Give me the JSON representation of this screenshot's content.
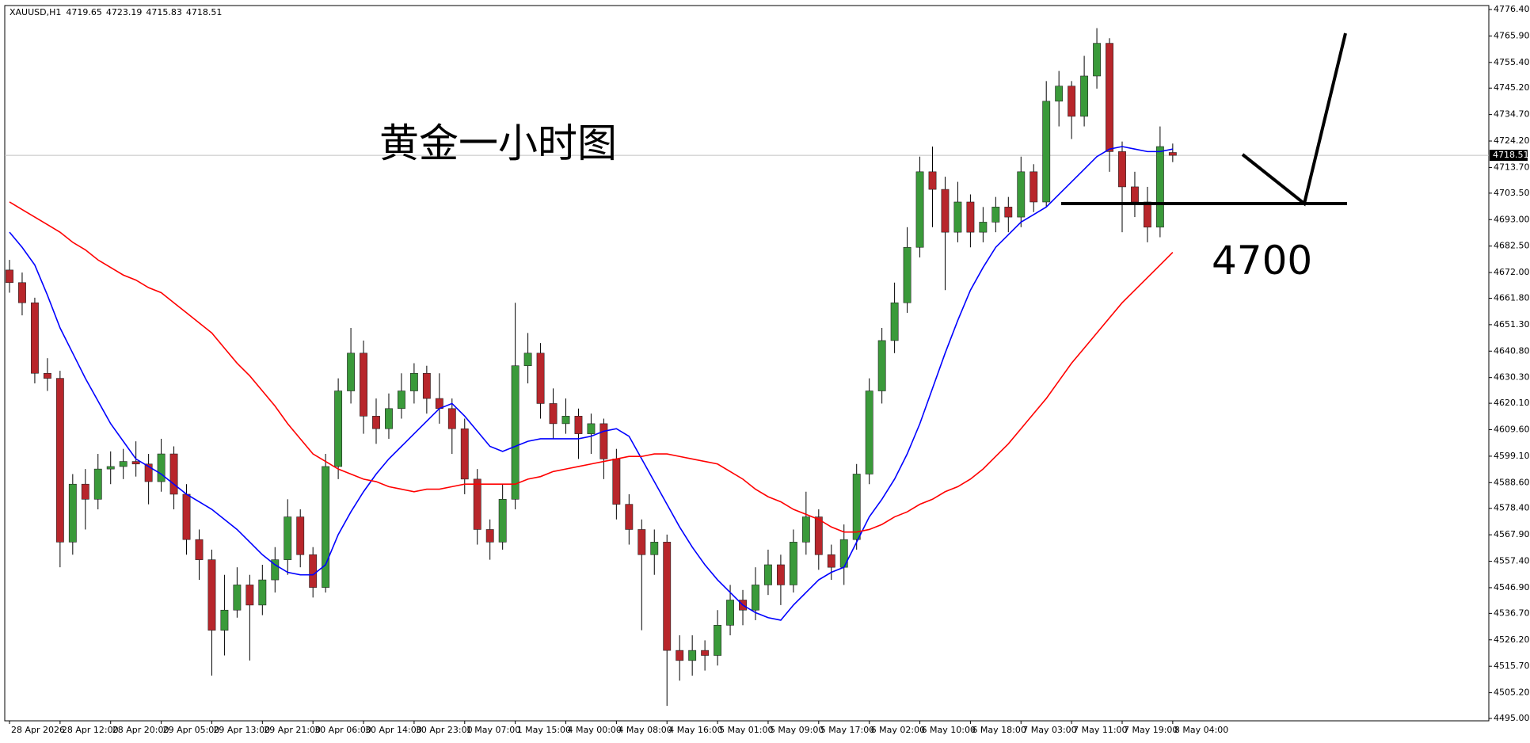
{
  "chart_data": {
    "type": "candlestick",
    "title": "XAUUSD,H1",
    "annotations": [
      "黄金一小时图",
      "4700"
    ],
    "up_color": "#3a9a3a",
    "down_color": "#b8262b",
    "wick_color": "#000000",
    "price_line_color": "#c0c0c0",
    "open": [
      4673,
      4668,
      4660,
      4632,
      4630,
      4565,
      4588,
      4582,
      4594,
      4595,
      4597,
      4596,
      4589,
      4600,
      4584,
      4566,
      4558,
      4530,
      4538,
      4548,
      4540,
      4550,
      4558,
      4575,
      4560,
      4547,
      4595,
      4625,
      4640,
      4615,
      4610,
      4618,
      4625,
      4632,
      4622,
      4618,
      4610,
      4590,
      4570,
      4565,
      4582,
      4635,
      4640,
      4620,
      4612,
      4615,
      4608,
      4612,
      4598,
      4580,
      4570,
      4560,
      4565,
      4522,
      4518,
      4522,
      4520,
      4532,
      4542,
      4538,
      4548,
      4556,
      4548,
      4565,
      4575,
      4560,
      4555,
      4566,
      4592,
      4625,
      4645,
      4660,
      4682,
      4712,
      4705,
      4688,
      4700,
      4688,
      4692,
      4698,
      4694,
      4712,
      4700,
      4740,
      4746,
      4734,
      4750,
      4763,
      4720,
      4706,
      4700,
      4690,
      4719.65
    ],
    "high": [
      4677,
      4672,
      4662,
      4638,
      4633,
      4592,
      4594,
      4600,
      4601,
      4602,
      4605,
      4600,
      4606,
      4603,
      4588,
      4570,
      4562,
      4552,
      4555,
      4552,
      4556,
      4563,
      4582,
      4578,
      4563,
      4600,
      4630,
      4650,
      4645,
      4622,
      4624,
      4632,
      4636,
      4635,
      4632,
      4622,
      4614,
      4594,
      4574,
      4588,
      4660,
      4648,
      4644,
      4626,
      4622,
      4618,
      4616,
      4614,
      4602,
      4584,
      4574,
      4570,
      4568,
      4528,
      4528,
      4526,
      4538,
      4548,
      4546,
      4555,
      4562,
      4560,
      4570,
      4585,
      4578,
      4564,
      4572,
      4596,
      4630,
      4650,
      4668,
      4690,
      4718,
      4722,
      4710,
      4708,
      4703,
      4698,
      4702,
      4702,
      4718,
      4715,
      4748,
      4752,
      4748,
      4758,
      4769,
      4765,
      4724,
      4712,
      4706,
      4730,
      4723.19
    ],
    "low": [
      4664,
      4655,
      4628,
      4625,
      4555,
      4560,
      4570,
      4578,
      4588,
      4590,
      4591,
      4580,
      4585,
      4578,
      4560,
      4550,
      4512,
      4520,
      4535,
      4518,
      4536,
      4545,
      4552,
      4555,
      4543,
      4545,
      4590,
      4620,
      4608,
      4604,
      4606,
      4614,
      4620,
      4616,
      4612,
      4600,
      4584,
      4564,
      4558,
      4562,
      4578,
      4628,
      4614,
      4606,
      4608,
      4598,
      4600,
      4590,
      4574,
      4564,
      4530,
      4552,
      4500,
      4510,
      4512,
      4514,
      4516,
      4528,
      4532,
      4534,
      4544,
      4540,
      4545,
      4560,
      4554,
      4550,
      4548,
      4562,
      4588,
      4620,
      4640,
      4656,
      4678,
      4690,
      4665,
      4684,
      4682,
      4684,
      4688,
      4688,
      4690,
      4696,
      4698,
      4730,
      4725,
      4730,
      4745,
      4712,
      4688,
      4694,
      4684,
      4686,
      4715.83
    ],
    "close": [
      4668,
      4660,
      4632,
      4630,
      4565,
      4588,
      4582,
      4594,
      4595,
      4597,
      4596,
      4589,
      4600,
      4584,
      4566,
      4558,
      4530,
      4538,
      4548,
      4540,
      4550,
      4558,
      4575,
      4560,
      4547,
      4595,
      4625,
      4640,
      4615,
      4610,
      4618,
      4625,
      4632,
      4622,
      4618,
      4610,
      4590,
      4570,
      4565,
      4582,
      4635,
      4640,
      4620,
      4612,
      4615,
      4608,
      4612,
      4598,
      4580,
      4570,
      4560,
      4565,
      4522,
      4518,
      4522,
      4520,
      4532,
      4542,
      4538,
      4548,
      4556,
      4548,
      4565,
      4575,
      4560,
      4555,
      4566,
      4592,
      4625,
      4645,
      4660,
      4682,
      4712,
      4705,
      4688,
      4700,
      4688,
      4692,
      4698,
      4694,
      4712,
      4700,
      4740,
      4746,
      4734,
      4750,
      4763,
      4720,
      4706,
      4700,
      4690,
      4722,
      4718.51
    ],
    "moving_averages": [
      {
        "color": "#0000ff",
        "values": [
          4688,
          4682,
          4675,
          4663,
          4650,
          4640,
          4630,
          4621,
          4612,
          4605,
          4598,
          4595,
          4592,
          4588,
          4584,
          4581,
          4578,
          4574,
          4570,
          4565,
          4560,
          4556,
          4553,
          4552,
          4552,
          4556,
          4568,
          4577,
          4585,
          4592,
          4598,
          4603,
          4608,
          4613,
          4618,
          4620,
          4615,
          4609,
          4603,
          4601,
          4603,
          4605,
          4606,
          4606,
          4606,
          4606,
          4607,
          4609,
          4610,
          4607,
          4598,
          4589,
          4580,
          4571,
          4563,
          4556,
          4550,
          4545,
          4540,
          4537,
          4535,
          4534,
          4540,
          4545,
          4550,
          4553,
          4555,
          4565,
          4575,
          4582,
          4590,
          4600,
          4612,
          4626,
          4640,
          4653,
          4665,
          4674,
          4682,
          4687,
          4692,
          4695,
          4698,
          4703,
          4708,
          4713,
          4718,
          4721,
          4722,
          4721,
          4720,
          4720,
          4721
        ]
      },
      {
        "color": "#ff0000",
        "values": [
          4700,
          4697,
          4694,
          4691,
          4688,
          4684,
          4681,
          4677,
          4674,
          4671,
          4669,
          4666,
          4664,
          4660,
          4656,
          4652,
          4648,
          4642,
          4636,
          4631,
          4625,
          4619,
          4612,
          4606,
          4600,
          4597,
          4594,
          4592,
          4590,
          4589,
          4587,
          4586,
          4585,
          4586,
          4586,
          4587,
          4588,
          4588,
          4588,
          4588,
          4588,
          4590,
          4591,
          4593,
          4594,
          4595,
          4596,
          4597,
          4598,
          4599,
          4599,
          4600,
          4600,
          4599,
          4598,
          4597,
          4596,
          4593,
          4590,
          4586,
          4583,
          4581,
          4578,
          4576,
          4574,
          4571,
          4569,
          4569,
          4570,
          4572,
          4575,
          4577,
          4580,
          4582,
          4585,
          4587,
          4590,
          4594,
          4599,
          4604,
          4610,
          4616,
          4622,
          4629,
          4636,
          4642,
          4648,
          4654,
          4660,
          4665,
          4670,
          4675,
          4680
        ]
      }
    ],
    "xlim": [
      0,
      117
    ],
    "xticks": [
      {
        "value": 0,
        "label": "28 Apr 2026"
      },
      {
        "value": 4,
        "label": "28 Apr 12:00"
      },
      {
        "value": 8,
        "label": "28 Apr 20:00"
      },
      {
        "value": 12,
        "label": "29 Apr 05:00"
      },
      {
        "value": 16,
        "label": "29 Apr 13:00"
      },
      {
        "value": 20,
        "label": "29 Apr 21:00"
      },
      {
        "value": 24,
        "label": "30 Apr 06:00"
      },
      {
        "value": 28,
        "label": "30 Apr 14:00"
      },
      {
        "value": 32,
        "label": "30 Apr 23:00"
      },
      {
        "value": 36,
        "label": "1 May 07:00"
      },
      {
        "value": 40,
        "label": "1 May 15:00"
      },
      {
        "value": 44,
        "label": "4 May 00:00"
      },
      {
        "value": 48,
        "label": "4 May 08:00"
      },
      {
        "value": 52,
        "label": "4 May 16:00"
      },
      {
        "value": 56,
        "label": "5 May 01:00"
      },
      {
        "value": 60,
        "label": "5 May 09:00"
      },
      {
        "value": 64,
        "label": "5 May 17:00"
      },
      {
        "value": 68,
        "label": "6 May 02:00"
      },
      {
        "value": 72,
        "label": "6 May 10:00"
      },
      {
        "value": 76,
        "label": "6 May 18:00"
      },
      {
        "value": 80,
        "label": "7 May 03:00"
      },
      {
        "value": 84,
        "label": "7 May 11:00"
      },
      {
        "value": 88,
        "label": "7 May 19:00"
      },
      {
        "value": 92,
        "label": "8 May 04:00"
      }
    ],
    "ylim": [
      4495.0,
      4776.4
    ],
    "yticks": [
      {
        "value": 4495.0,
        "label": "4495.00"
      },
      {
        "value": 4505.2,
        "label": "4505.20"
      },
      {
        "value": 4515.7,
        "label": "4515.70"
      },
      {
        "value": 4526.2,
        "label": "4526.20"
      },
      {
        "value": 4536.7,
        "label": "4536.70"
      },
      {
        "value": 4546.9,
        "label": "4546.90"
      },
      {
        "value": 4557.4,
        "label": "4557.40"
      },
      {
        "value": 4567.9,
        "label": "4567.90"
      },
      {
        "value": 4578.4,
        "label": "4578.40"
      },
      {
        "value": 4588.6,
        "label": "4588.60"
      },
      {
        "value": 4599.1,
        "label": "4599.10"
      },
      {
        "value": 4609.6,
        "label": "4609.60"
      },
      {
        "value": 4620.1,
        "label": "4620.10"
      },
      {
        "value": 4630.3,
        "label": "4630.30"
      },
      {
        "value": 4640.8,
        "label": "4640.80"
      },
      {
        "value": 4651.3,
        "label": "4651.30"
      },
      {
        "value": 4661.8,
        "label": "4661.80"
      },
      {
        "value": 4672.0,
        "label": "4672.00"
      },
      {
        "value": 4682.5,
        "label": "4682.50"
      },
      {
        "value": 4693.0,
        "label": "4693.00"
      },
      {
        "value": 4703.5,
        "label": "4703.50"
      },
      {
        "value": 4713.7,
        "label": "4713.70"
      },
      {
        "value": 4724.2,
        "label": "4724.20"
      },
      {
        "value": 4734.7,
        "label": "4734.70"
      },
      {
        "value": 4745.2,
        "label": "4745.20"
      },
      {
        "value": 4755.4,
        "label": "4755.40"
      },
      {
        "value": 4765.9,
        "label": "4765.90"
      },
      {
        "value": 4776.4,
        "label": "4776.40"
      }
    ]
  }
}
